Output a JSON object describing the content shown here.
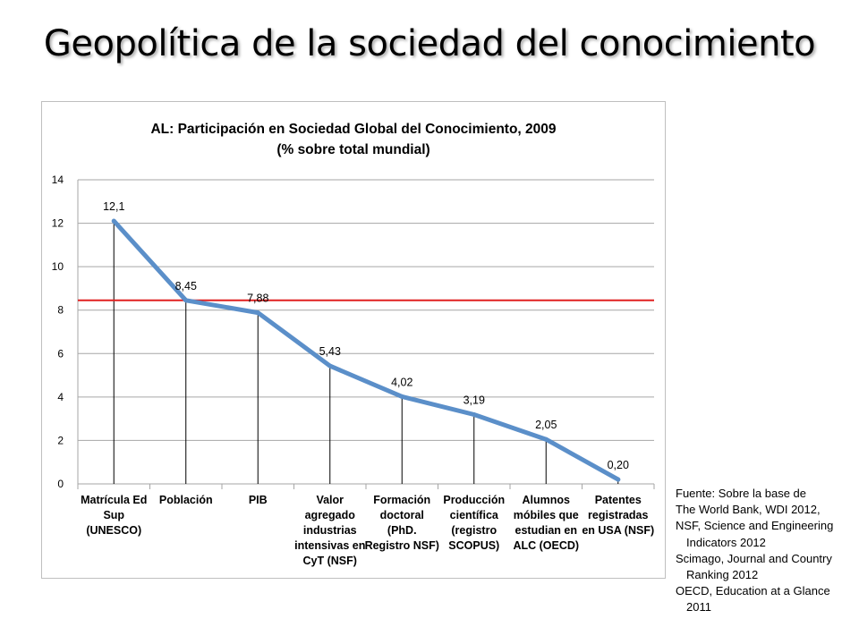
{
  "slide": {
    "title": "Geopolítica de la sociedad del conocimiento"
  },
  "source": {
    "lines": [
      {
        "text": "Fuente: Sobre la base de",
        "indent": false
      },
      {
        "text": "The World Bank, WDI 2012,",
        "indent": false
      },
      {
        "text": "NSF, Science and Engineering",
        "indent": false
      },
      {
        "text": "Indicators 2012",
        "indent": true
      },
      {
        "text": "Scimago, Journal and Country",
        "indent": false
      },
      {
        "text": "Ranking 2012",
        "indent": true
      },
      {
        "text": "OECD, Education at a Glance",
        "indent": false
      },
      {
        "text": "2011",
        "indent": true
      }
    ]
  },
  "chart_data": {
    "type": "line",
    "title": "AL: Participación en Sociedad Global del Conocimiento, 2009",
    "subtitle": "(% sobre total mundial)",
    "categories": [
      [
        "Matrícula Ed",
        "Sup",
        "(UNESCO)"
      ],
      [
        "Población"
      ],
      [
        "PIB"
      ],
      [
        "Valor",
        "agregado",
        "industrias",
        "intensivas en",
        "CyT (NSF)"
      ],
      [
        "Formación",
        "doctoral",
        "(PhD.",
        "Registro NSF)"
      ],
      [
        "Producción",
        "científica",
        "(registro",
        "SCOPUS)"
      ],
      [
        "Alumnos",
        "móbiles que",
        "estudian en",
        "ALC (OECD)"
      ],
      [
        "Patentes",
        "registradas",
        "en USA (NSF)"
      ]
    ],
    "values": [
      12.1,
      8.45,
      7.88,
      5.43,
      4.02,
      3.19,
      2.05,
      0.2
    ],
    "data_labels": [
      "12,1",
      "8,45",
      "7,88",
      "5,43",
      "4,02",
      "3,19",
      "2,05",
      "0,20"
    ],
    "reference_line": {
      "value": 8.45,
      "color": "#e02020"
    },
    "ylim": [
      0,
      14
    ],
    "yticks": [
      0,
      2,
      4,
      6,
      8,
      10,
      12,
      14
    ],
    "grid": true,
    "drop_lines": true,
    "legend": "none",
    "line_color": "#5b8fc9",
    "grid_color": "#a6a6a6"
  }
}
